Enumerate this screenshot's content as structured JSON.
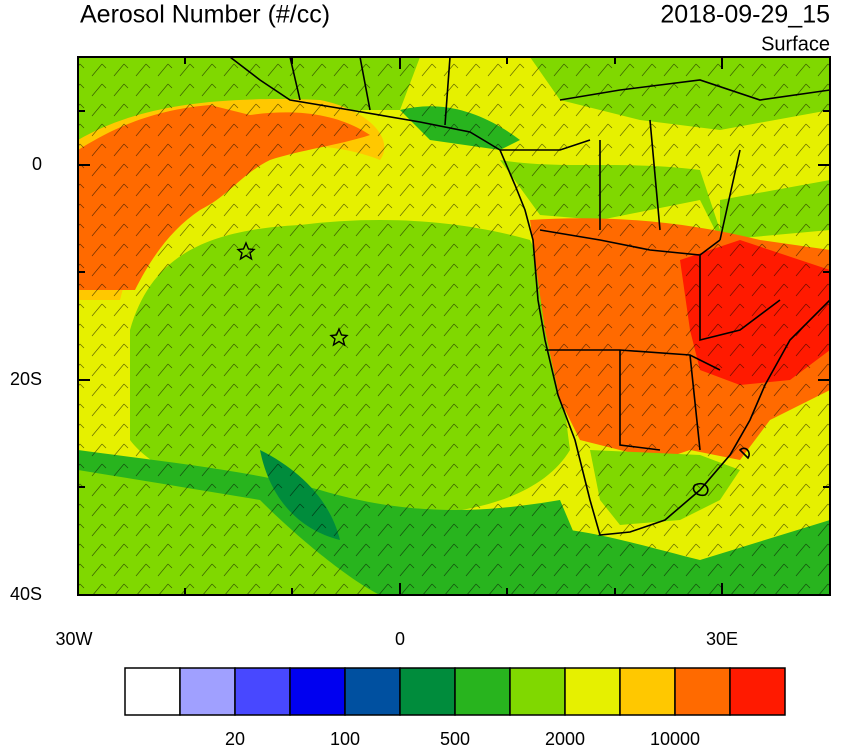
{
  "header": {
    "title": "Aerosol Number (#/cc)",
    "datetime": "2018-09-29_15",
    "level": "Surface"
  },
  "map": {
    "lat_labels": [
      "0",
      "20S",
      "40S"
    ],
    "lon_labels": [
      "30W",
      "0",
      "30E"
    ]
  },
  "colorbar": {
    "colors": [
      "#ffffff",
      "#a0a0ff",
      "#4848ff",
      "#0000f0",
      "#0050a0",
      "#008c3c",
      "#28b41e",
      "#80d800",
      "#e6f000",
      "#ffc800",
      "#ff6a00",
      "#ff1a00"
    ],
    "labels": [
      "20",
      "100",
      "500",
      "2000",
      "10000"
    ]
  }
}
